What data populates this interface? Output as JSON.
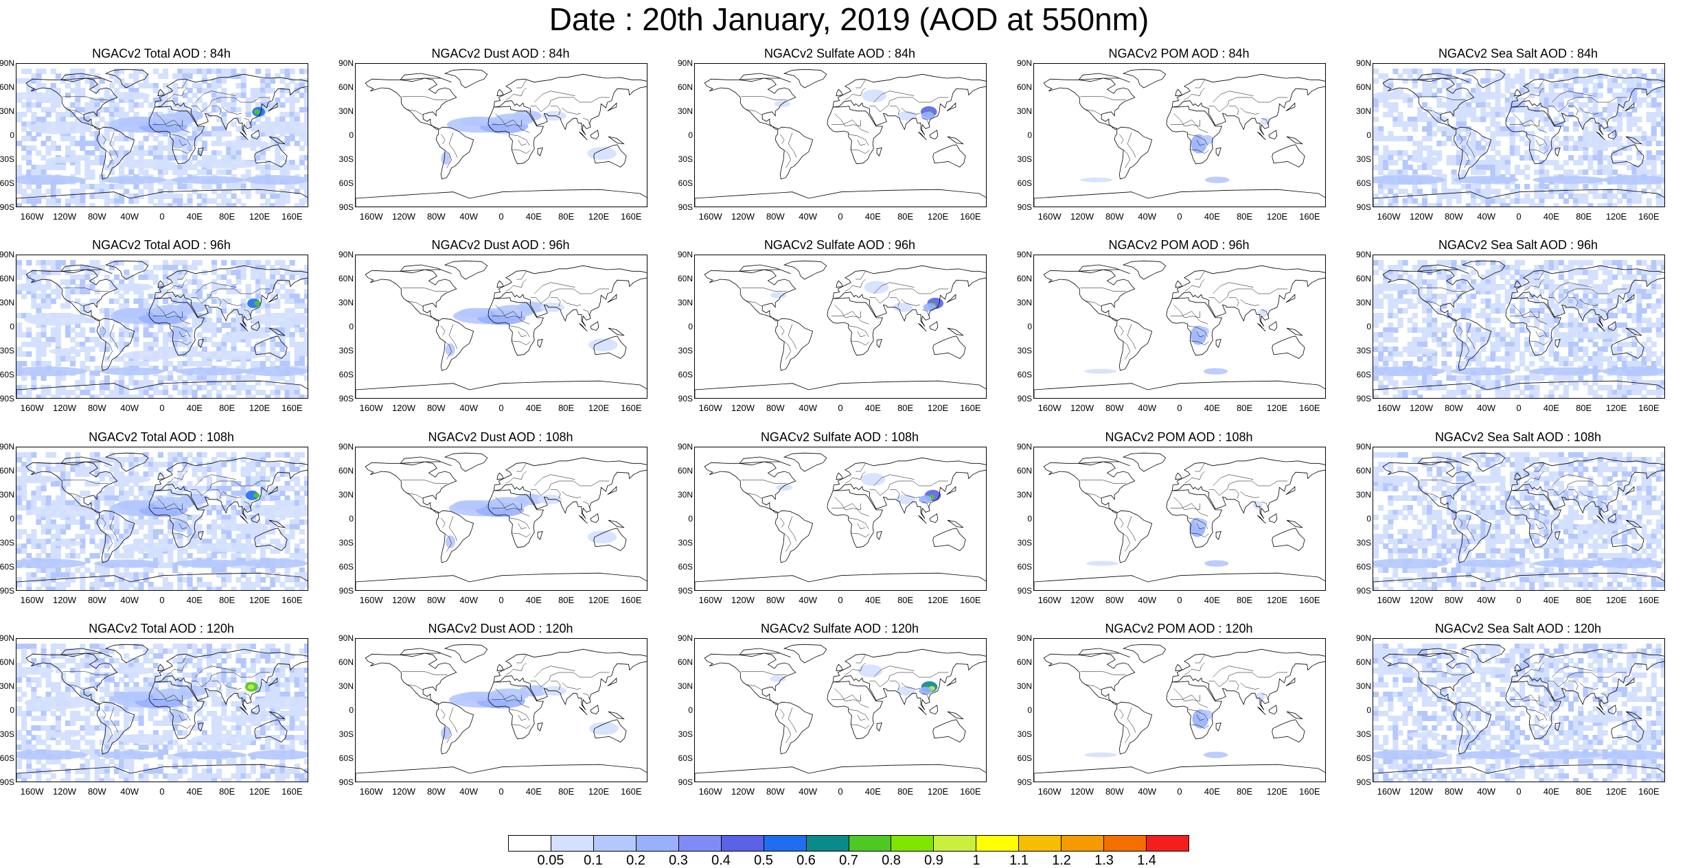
{
  "title": "Date : 20th January, 2019 (AOD at 550nm)",
  "lat_labels": [
    "90N",
    "60N",
    "30N",
    "0",
    "30S",
    "60S",
    "90S"
  ],
  "lon_labels": [
    "160W",
    "120W",
    "80W",
    "40W",
    "0",
    "40E",
    "80E",
    "120E",
    "160E"
  ],
  "columns": [
    {
      "type": "total",
      "pattern": "ocean"
    },
    {
      "type": "dust",
      "pattern": "dust"
    },
    {
      "type": "sulfate",
      "pattern": "sulfate"
    },
    {
      "type": "pom",
      "pattern": "pom"
    },
    {
      "type": "seasalt",
      "pattern": "seasalt"
    }
  ],
  "panels": [
    [
      "NGACv2 Total AOD : 84h",
      "NGACv2 Dust AOD : 84h",
      "NGACv2 Sulfate AOD : 84h",
      "NGACv2 POM AOD : 84h",
      "NGACv2 Sea Salt AOD : 84h"
    ],
    [
      "NGACv2 Total AOD : 96h",
      "NGACv2 Dust AOD : 96h",
      "NGACv2 Sulfate AOD : 96h",
      "NGACv2 POM AOD : 96h",
      "NGACv2 Sea Salt AOD : 96h"
    ],
    [
      "NGACv2 Total AOD : 108h",
      "NGACv2 Dust AOD : 108h",
      "NGACv2 Sulfate AOD : 108h",
      "NGACv2 POM AOD : 108h",
      "NGACv2 Sea Salt AOD : 108h"
    ],
    [
      "NGACv2 Total AOD : 120h",
      "NGACv2 Dust AOD : 120h",
      "NGACv2 Sulfate AOD : 120h",
      "NGACv2 POM AOD : 120h",
      "NGACv2 Sea Salt  AOD : 120h"
    ]
  ],
  "colorbar": {
    "labels": [
      "0.05",
      "0.1",
      "0.2",
      "0.3",
      "0.4",
      "0.5",
      "0.6",
      "0.7",
      "0.8",
      "0.9",
      "1",
      "1.1",
      "1.2",
      "1.3",
      "1.4"
    ],
    "colors": [
      "#ffffff",
      "#d4e0ff",
      "#b4c8ff",
      "#9ab0ff",
      "#7f8cf8",
      "#5a62e8",
      "#1e6eef",
      "#0a8a8a",
      "#4ec822",
      "#7fe600",
      "#c8f03c",
      "#ffff00",
      "#f5be00",
      "#f59b00",
      "#f56e00",
      "#f51e1e"
    ]
  }
}
